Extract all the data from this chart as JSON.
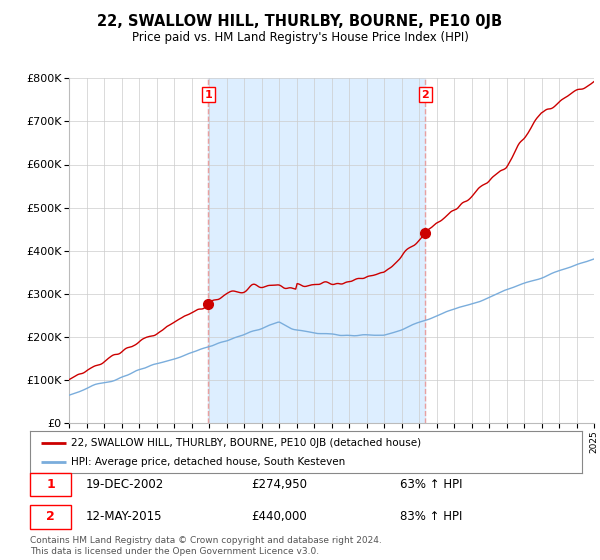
{
  "title": "22, SWALLOW HILL, THURLBY, BOURNE, PE10 0JB",
  "subtitle": "Price paid vs. HM Land Registry's House Price Index (HPI)",
  "ylim": [
    0,
    800000
  ],
  "yticks": [
    0,
    100000,
    200000,
    300000,
    400000,
    500000,
    600000,
    700000,
    800000
  ],
  "ytick_labels": [
    "£0",
    "£100K",
    "£200K",
    "£300K",
    "£400K",
    "£500K",
    "£600K",
    "£700K",
    "£800K"
  ],
  "hpi_color": "#7aaddc",
  "price_color": "#cc0000",
  "marker1_date": 2002.96,
  "marker1_price": 274950,
  "marker2_date": 2015.36,
  "marker2_price": 440000,
  "legend_line1": "22, SWALLOW HILL, THURLBY, BOURNE, PE10 0JB (detached house)",
  "legend_line2": "HPI: Average price, detached house, South Kesteven",
  "marker1_text": "19-DEC-2002",
  "marker1_price_text": "£274,950",
  "marker1_pct": "63% ↑ HPI",
  "marker2_text": "12-MAY-2015",
  "marker2_price_text": "£440,000",
  "marker2_pct": "83% ↑ HPI",
  "footer": "Contains HM Land Registry data © Crown copyright and database right 2024.\nThis data is licensed under the Open Government Licence v3.0.",
  "shade_color": "#ddeeff",
  "vline_color": "#e8a0a0",
  "background_color": "#ffffff",
  "grid_color": "#cccccc"
}
